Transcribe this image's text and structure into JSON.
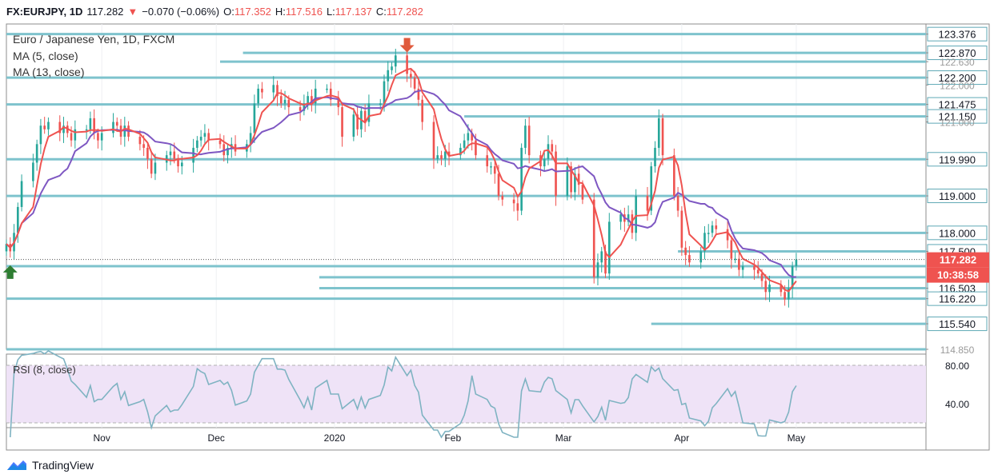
{
  "header": {
    "symbol": "FX:EURJPY, 1D",
    "last": "117.282",
    "change_arrow": "▼",
    "change": "−0.070 (−0.06%)",
    "open_label": "O:",
    "open": "117.352",
    "high_label": "H:",
    "high": "117.516",
    "low_label": "L:",
    "low": "117.137",
    "close_label": "C:",
    "close": "117.282"
  },
  "legend": {
    "title": "Euro / Japanese Yen, 1D, FXCM",
    "ma5": "MA (5, close)",
    "ma13": "MA (13, close)",
    "rsi": "RSI (8, close)"
  },
  "price_tag": "117.282",
  "countdown_tag": "10:38:58",
  "footer": {
    "brand": "TradingView"
  },
  "colors": {
    "up": "#26a69a",
    "down": "#ef5350",
    "ma5": "#ef5350",
    "ma13": "#7e57c2",
    "level": "#7ec3cd",
    "rsi_line": "#7fb3c2",
    "rsi_band": "#efe3f7",
    "axis_box": "#ffffff",
    "axis_box_border": "#5fa8b6"
  },
  "chart_data": {
    "type": "candlestick",
    "x_ticks": [
      "Nov",
      "Dec",
      "2020",
      "Feb",
      "Mar",
      "Apr",
      "May"
    ],
    "x_tick_dates": [
      "2019-11-01",
      "2019-12-01",
      "2020-01-01",
      "2020-02-01",
      "2020-03-01",
      "2020-04-01",
      "2020-05-01"
    ],
    "date_range": [
      "2019-10-07",
      "2020-06-04"
    ],
    "ylim": [
      114.85,
      123.65
    ],
    "y_tick_labels": [
      "123.376",
      "122.870",
      "122.630",
      "122.200",
      "122.000",
      "121.475",
      "121.150",
      "121.000",
      "119.990",
      "119.000",
      "118.000",
      "117.500",
      "116.503",
      "116.220",
      "115.540",
      "114.850"
    ],
    "y_axis_box_labels": [
      "123.376",
      "122.870",
      "122.200",
      "121.475",
      "121.150",
      "119.990",
      "119.000",
      "118.000",
      "117.500",
      "116.503",
      "116.220",
      "115.540"
    ],
    "y_axis_faint_labels": [
      "122.630",
      "122.000",
      "121.000",
      "114.850"
    ],
    "horizontal_levels": [
      {
        "price": 123.376,
        "from": "2019-10-07"
      },
      {
        "price": 122.87,
        "from": "2019-12-08"
      },
      {
        "price": 122.63,
        "from": "2019-12-02"
      },
      {
        "price": 122.2,
        "from": "2019-10-07"
      },
      {
        "price": 121.475,
        "from": "2019-10-07"
      },
      {
        "price": 121.15,
        "from": "2020-02-04"
      },
      {
        "price": 119.99,
        "from": "2019-10-07"
      },
      {
        "price": 119.0,
        "from": "2019-10-07"
      },
      {
        "price": 118.0,
        "from": "2020-04-14"
      },
      {
        "price": 117.5,
        "from": "2020-03-31"
      },
      {
        "price": 117.1,
        "from": "2019-10-07"
      },
      {
        "price": 116.8,
        "from": "2019-12-28"
      },
      {
        "price": 116.503,
        "from": "2019-12-28"
      },
      {
        "price": 116.22,
        "from": "2019-10-07"
      },
      {
        "price": 115.54,
        "from": "2020-03-24"
      },
      {
        "price": 114.85,
        "from": "2019-10-07"
      }
    ],
    "markers": [
      {
        "type": "up-arrow",
        "date": "2019-10-08",
        "price": 116.95
      },
      {
        "type": "down-arrow",
        "date": "2020-01-20",
        "price": 123.1
      }
    ],
    "closes": [
      [
        "2019-10-07",
        117.7
      ],
      [
        "2019-10-08",
        117.5
      ],
      [
        "2019-10-09",
        118.0
      ],
      [
        "2019-10-10",
        118.7
      ],
      [
        "2019-10-11",
        119.4
      ],
      [
        "2019-10-14",
        119.9
      ],
      [
        "2019-10-15",
        120.4
      ],
      [
        "2019-10-16",
        120.9
      ],
      [
        "2019-10-17",
        120.8
      ],
      [
        "2019-10-18",
        121.0
      ],
      [
        "2019-10-21",
        120.7
      ],
      [
        "2019-10-22",
        120.9
      ],
      [
        "2019-10-23",
        120.7
      ],
      [
        "2019-10-24",
        120.5
      ],
      [
        "2019-10-25",
        120.8
      ],
      [
        "2019-10-28",
        120.8
      ],
      [
        "2019-10-29",
        121.1
      ],
      [
        "2019-10-30",
        120.7
      ],
      [
        "2019-10-31",
        120.5
      ],
      [
        "2019-11-01",
        120.7
      ],
      [
        "2019-11-04",
        121.0
      ],
      [
        "2019-11-05",
        120.9
      ],
      [
        "2019-11-06",
        120.6
      ],
      [
        "2019-11-07",
        120.9
      ],
      [
        "2019-11-08",
        120.6
      ],
      [
        "2019-11-11",
        120.4
      ],
      [
        "2019-11-12",
        120.3
      ],
      [
        "2019-11-13",
        120.0
      ],
      [
        "2019-11-14",
        119.6
      ],
      [
        "2019-11-15",
        119.9
      ],
      [
        "2019-11-18",
        120.1
      ],
      [
        "2019-11-19",
        120.2
      ],
      [
        "2019-11-20",
        120.0
      ],
      [
        "2019-11-21",
        119.8
      ],
      [
        "2019-11-22",
        119.9
      ],
      [
        "2019-11-25",
        120.3
      ],
      [
        "2019-11-26",
        120.5
      ],
      [
        "2019-11-27",
        120.6
      ],
      [
        "2019-11-28",
        120.7
      ],
      [
        "2019-11-29",
        120.5
      ],
      [
        "2019-12-02",
        120.4
      ],
      [
        "2019-12-03",
        120.1
      ],
      [
        "2019-12-04",
        120.3
      ],
      [
        "2019-12-05",
        120.4
      ],
      [
        "2019-12-06",
        120.2
      ],
      [
        "2019-12-09",
        120.4
      ],
      [
        "2019-12-10",
        120.7
      ],
      [
        "2019-12-11",
        121.5
      ],
      [
        "2019-12-12",
        121.9
      ],
      [
        "2019-12-13",
        121.8
      ],
      [
        "2019-12-16",
        122.0
      ],
      [
        "2019-12-17",
        121.7
      ],
      [
        "2019-12-18",
        121.5
      ],
      [
        "2019-12-19",
        121.6
      ],
      [
        "2019-12-20",
        121.4
      ],
      [
        "2019-12-23",
        121.3
      ],
      [
        "2019-12-24",
        121.5
      ],
      [
        "2019-12-25",
        121.7
      ],
      [
        "2019-12-26",
        121.5
      ],
      [
        "2019-12-27",
        121.9
      ],
      [
        "2019-12-30",
        121.9
      ],
      [
        "2019-12-31",
        121.6
      ],
      [
        "2020-01-02",
        121.4
      ],
      [
        "2020-01-03",
        120.6
      ],
      [
        "2020-01-06",
        121.2
      ],
      [
        "2020-01-07",
        120.8
      ],
      [
        "2020-01-08",
        121.3
      ],
      [
        "2020-01-09",
        121.0
      ],
      [
        "2020-01-10",
        121.5
      ],
      [
        "2020-01-13",
        121.5
      ],
      [
        "2020-01-14",
        122.1
      ],
      [
        "2020-01-15",
        122.4
      ],
      [
        "2020-01-16",
        122.5
      ],
      [
        "2020-01-17",
        122.8
      ],
      [
        "2020-01-20",
        122.3
      ],
      [
        "2020-01-21",
        122.2
      ],
      [
        "2020-01-22",
        121.9
      ],
      [
        "2020-01-23",
        121.6
      ],
      [
        "2020-01-24",
        121.0
      ],
      [
        "2020-01-27",
        120.0
      ],
      [
        "2020-01-28",
        120.1
      ],
      [
        "2020-01-29",
        120.0
      ],
      [
        "2020-01-30",
        120.2
      ],
      [
        "2020-01-31",
        120.1
      ],
      [
        "2020-02-03",
        120.3
      ],
      [
        "2020-02-04",
        120.5
      ],
      [
        "2020-02-05",
        120.7
      ],
      [
        "2020-02-06",
        120.5
      ],
      [
        "2020-02-07",
        120.1
      ],
      [
        "2020-02-10",
        119.8
      ],
      [
        "2020-02-11",
        119.8
      ],
      [
        "2020-02-12",
        119.6
      ],
      [
        "2020-02-13",
        119.0
      ],
      [
        "2020-02-14",
        118.9
      ],
      [
        "2020-02-17",
        118.8
      ],
      [
        "2020-02-18",
        118.6
      ],
      [
        "2020-02-19",
        120.3
      ],
      [
        "2020-02-20",
        120.9
      ],
      [
        "2020-02-21",
        120.1
      ],
      [
        "2020-02-24",
        119.8
      ],
      [
        "2020-02-25",
        120.0
      ],
      [
        "2020-02-26",
        120.4
      ],
      [
        "2020-02-27",
        120.2
      ],
      [
        "2020-02-28",
        119.0
      ],
      [
        "2020-03-02",
        119.8
      ],
      [
        "2020-03-03",
        119.1
      ],
      [
        "2020-03-04",
        119.6
      ],
      [
        "2020-03-05",
        119.3
      ],
      [
        "2020-03-06",
        118.9
      ],
      [
        "2020-03-09",
        116.8
      ],
      [
        "2020-03-10",
        117.2
      ],
      [
        "2020-03-11",
        117.5
      ],
      [
        "2020-03-12",
        116.9
      ],
      [
        "2020-03-13",
        118.3
      ],
      [
        "2020-03-16",
        118.5
      ],
      [
        "2020-03-17",
        118.3
      ],
      [
        "2020-03-18",
        118.5
      ],
      [
        "2020-03-19",
        118.0
      ],
      [
        "2020-03-20",
        119.0
      ],
      [
        "2020-03-23",
        118.6
      ],
      [
        "2020-03-24",
        119.8
      ],
      [
        "2020-03-25",
        120.3
      ],
      [
        "2020-03-26",
        121.1
      ],
      [
        "2020-03-27",
        120.1
      ],
      [
        "2020-03-30",
        119.0
      ],
      [
        "2020-03-31",
        118.6
      ],
      [
        "2020-04-01",
        117.6
      ],
      [
        "2020-04-02",
        117.4
      ],
      [
        "2020-04-03",
        117.2
      ],
      [
        "2020-04-06",
        117.5
      ],
      [
        "2020-04-07",
        118.0
      ],
      [
        "2020-04-08",
        118.0
      ],
      [
        "2020-04-09",
        118.2
      ],
      [
        "2020-04-10",
        118.1
      ],
      [
        "2020-04-13",
        117.8
      ],
      [
        "2020-04-14",
        117.3
      ],
      [
        "2020-04-15",
        117.3
      ],
      [
        "2020-04-16",
        117.0
      ],
      [
        "2020-04-17",
        117.1
      ],
      [
        "2020-04-20",
        117.0
      ],
      [
        "2020-04-21",
        116.9
      ],
      [
        "2020-04-22",
        116.7
      ],
      [
        "2020-04-23",
        116.4
      ],
      [
        "2020-04-24",
        116.6
      ],
      [
        "2020-04-27",
        116.4
      ],
      [
        "2020-04-28",
        116.2
      ],
      [
        "2020-04-29",
        116.5
      ],
      [
        "2020-04-30",
        117.1
      ],
      [
        "2020-05-01",
        117.28
      ]
    ],
    "rsi": {
      "name": "RSI (8, close)",
      "ylim": [
        15,
        90
      ],
      "y_tick_labels": [
        "80.00",
        "40.00"
      ],
      "band": [
        20,
        80
      ],
      "last_values": [
        58,
        60
      ]
    }
  }
}
